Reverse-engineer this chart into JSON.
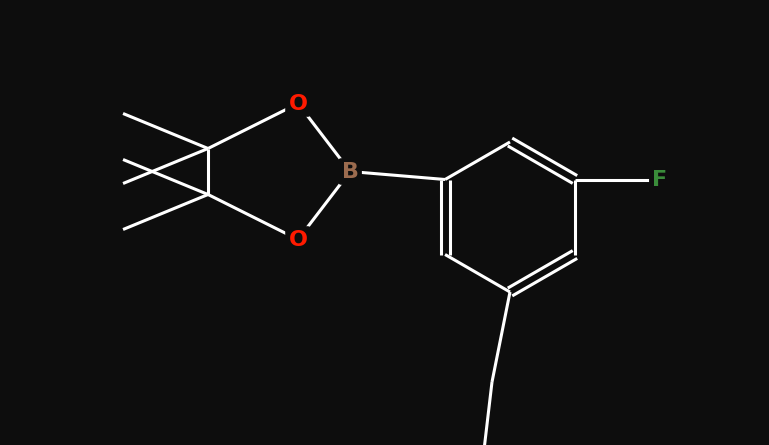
{
  "bg_color": "#0d0d0d",
  "bond_color": "#ffffff",
  "atom_colors": {
    "B": "#9b6b4e",
    "O": "#ff1a00",
    "F": "#3a8c3a",
    "Br": "#993333"
  },
  "bond_width": 2.2,
  "figsize": [
    7.69,
    4.45
  ],
  "dpi": 100
}
